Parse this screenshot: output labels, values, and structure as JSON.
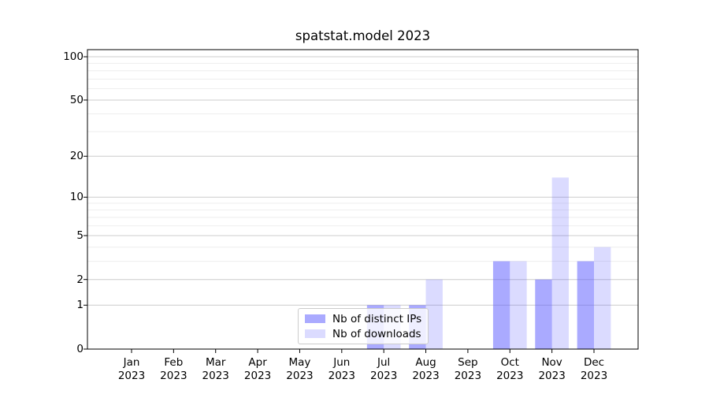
{
  "chart_data": {
    "type": "bar",
    "title": "spatstat.model 2023",
    "categories": [
      "Jan",
      "Feb",
      "Mar",
      "Apr",
      "May",
      "Jun",
      "Jul",
      "Aug",
      "Sep",
      "Oct",
      "Nov",
      "Dec"
    ],
    "category_year": "2023",
    "series": [
      {
        "name": "Nb of distinct IPs",
        "color": "#5555ff",
        "alpha": 0.5,
        "values": [
          0,
          0,
          0,
          0,
          0,
          0,
          1,
          1,
          0,
          3,
          2,
          3
        ]
      },
      {
        "name": "Nb of downloads",
        "color": "#5555ff",
        "alpha": 0.21,
        "values": [
          0,
          0,
          0,
          0,
          0,
          0,
          1,
          2,
          0,
          3,
          14,
          4
        ]
      }
    ],
    "yscale": "log1p",
    "ylim": [
      0,
      112
    ],
    "yticks": [
      0,
      1,
      2,
      5,
      10,
      20,
      50,
      100
    ],
    "yticks_minor": [
      3,
      4,
      6,
      7,
      8,
      9,
      30,
      40,
      60,
      70,
      80,
      90
    ],
    "grid": "horizontal",
    "legend_position": "lower-center-inside",
    "colors": {
      "grid_major": "#cccccc",
      "grid_minor": "#eeeeee",
      "spine": "#000000",
      "text": "#000000",
      "legend_border": "#cccccc"
    }
  }
}
